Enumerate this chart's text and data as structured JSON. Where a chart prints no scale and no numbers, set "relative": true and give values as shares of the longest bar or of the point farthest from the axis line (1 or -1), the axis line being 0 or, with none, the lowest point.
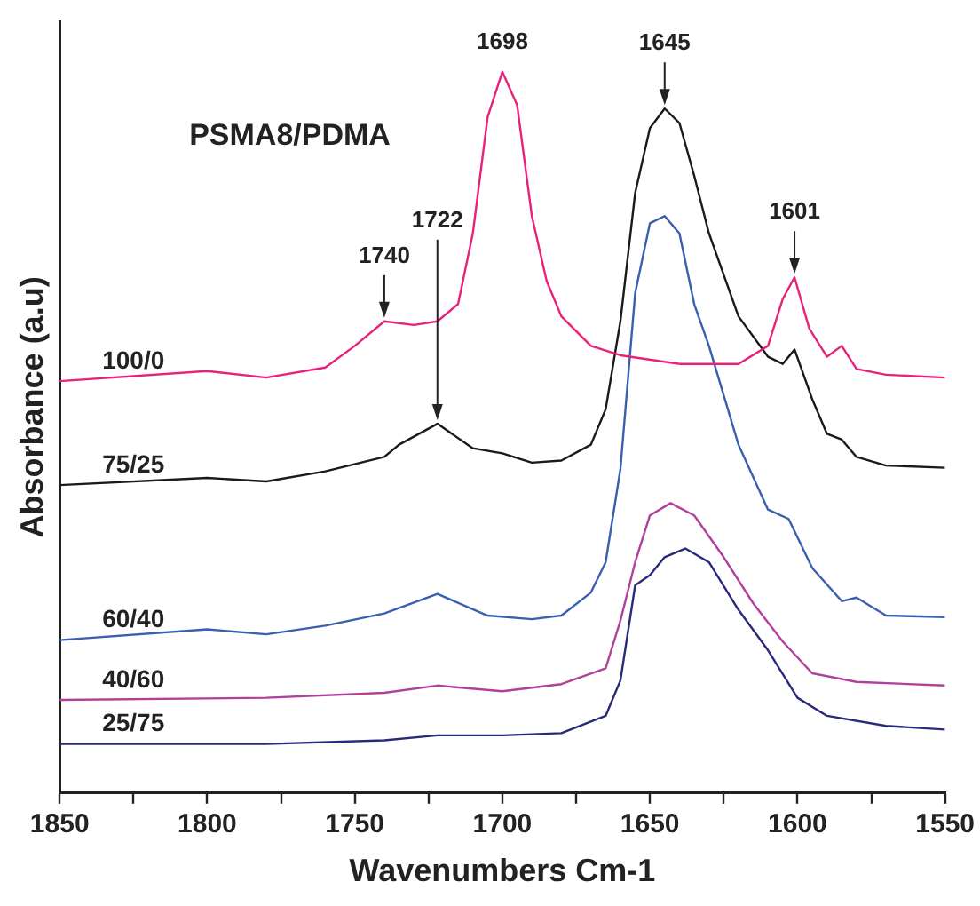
{
  "chart_data": {
    "type": "line",
    "xlabel": "Wavenumbers Cm-1",
    "ylabel": "Absorbance (a.u)",
    "relative": true,
    "xlim": [
      1850,
      1550
    ],
    "xticks": [
      1850,
      {
        "value": 1825,
        "label": null
      },
      1800,
      {
        "value": 1775,
        "label": null
      },
      1750,
      {
        "value": 1725,
        "label": null
      },
      1700,
      {
        "value": 1675,
        "label": null
      },
      1650,
      {
        "value": 1625,
        "label": null
      },
      1600,
      {
        "value": 1575,
        "label": null
      },
      1550
    ],
    "marker": "none",
    "grid": false,
    "legend": false,
    "annotations": [
      "PSMA8/PDMA",
      {
        "text": "1740",
        "x": 1740,
        "y": 0.654
      },
      {
        "text": "1722",
        "x": 1722,
        "y": 0.512
      },
      {
        "text": "1698",
        "x": 1700,
        "y": 1.0
      },
      {
        "text": "1645",
        "x": 1645,
        "y": 0.949
      },
      {
        "text": "1601",
        "x": 1601,
        "y": 0.715
      }
    ],
    "series": [
      {
        "name": "100/0",
        "color": "#e8227a",
        "x": [
          1850,
          1800,
          1780,
          1760,
          1750,
          1740,
          1730,
          1722,
          1715,
          1710,
          1705,
          1700,
          1695,
          1690,
          1685,
          1680,
          1670,
          1660,
          1640,
          1620,
          1610,
          1605,
          1601,
          1596,
          1590,
          1585,
          1580,
          1570,
          1550
        ],
        "values": [
          0.571,
          0.585,
          0.576,
          0.59,
          0.62,
          0.654,
          0.649,
          0.654,
          0.678,
          0.776,
          0.937,
          1.0,
          0.954,
          0.8,
          0.71,
          0.661,
          0.62,
          0.607,
          0.595,
          0.595,
          0.62,
          0.685,
          0.715,
          0.644,
          0.605,
          0.62,
          0.588,
          0.58,
          0.576
        ]
      },
      {
        "name": "75/25",
        "color": "#1a1a1a",
        "x": [
          1850,
          1800,
          1780,
          1760,
          1740,
          1735,
          1722,
          1710,
          1700,
          1690,
          1680,
          1670,
          1665,
          1660,
          1655,
          1650,
          1645,
          1640,
          1635,
          1630,
          1620,
          1610,
          1605,
          1601,
          1595,
          1590,
          1585,
          1580,
          1570,
          1550
        ],
        "values": [
          0.427,
          0.437,
          0.432,
          0.446,
          0.466,
          0.483,
          0.512,
          0.478,
          0.471,
          0.458,
          0.461,
          0.483,
          0.532,
          0.654,
          0.832,
          0.922,
          0.949,
          0.929,
          0.856,
          0.776,
          0.661,
          0.605,
          0.595,
          0.615,
          0.546,
          0.498,
          0.49,
          0.466,
          0.454,
          0.451
        ]
      },
      {
        "name": "60/40",
        "color": "#3a5fb0",
        "x": [
          1850,
          1800,
          1780,
          1760,
          1740,
          1722,
          1705,
          1690,
          1680,
          1670,
          1665,
          1660,
          1655,
          1650,
          1645,
          1640,
          1635,
          1630,
          1620,
          1610,
          1603,
          1595,
          1585,
          1580,
          1570,
          1550
        ],
        "values": [
          0.212,
          0.227,
          0.22,
          0.232,
          0.249,
          0.276,
          0.246,
          0.241,
          0.246,
          0.278,
          0.32,
          0.449,
          0.693,
          0.79,
          0.8,
          0.776,
          0.678,
          0.62,
          0.483,
          0.393,
          0.38,
          0.312,
          0.266,
          0.271,
          0.246,
          0.244
        ]
      },
      {
        "name": "40/60",
        "color": "#b0409a",
        "x": [
          1850,
          1780,
          1740,
          1722,
          1700,
          1680,
          1665,
          1660,
          1655,
          1650,
          1643,
          1635,
          1625,
          1615,
          1605,
          1595,
          1580,
          1550
        ],
        "values": [
          0.129,
          0.132,
          0.139,
          0.149,
          0.141,
          0.151,
          0.173,
          0.239,
          0.32,
          0.385,
          0.402,
          0.385,
          0.327,
          0.263,
          0.21,
          0.166,
          0.154,
          0.149
        ]
      },
      {
        "name": "25/75",
        "color": "#2a2a7a",
        "x": [
          1850,
          1780,
          1740,
          1722,
          1700,
          1680,
          1665,
          1660,
          1655,
          1650,
          1645,
          1638,
          1630,
          1620,
          1610,
          1600,
          1590,
          1570,
          1550
        ],
        "values": [
          0.068,
          0.068,
          0.073,
          0.08,
          0.08,
          0.083,
          0.107,
          0.156,
          0.288,
          0.302,
          0.327,
          0.339,
          0.32,
          0.254,
          0.198,
          0.132,
          0.107,
          0.093,
          0.088
        ]
      }
    ]
  }
}
